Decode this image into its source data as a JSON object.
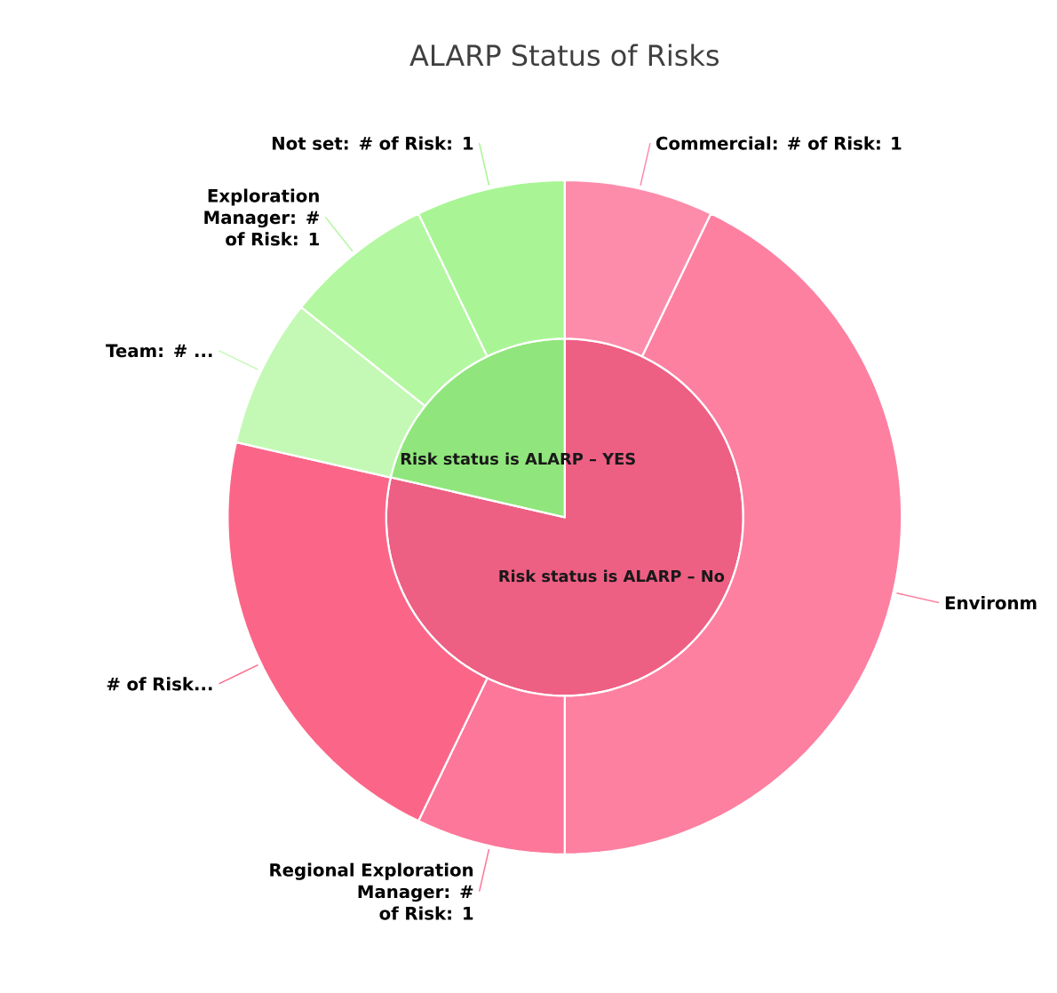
{
  "chart_data": [
    {
      "type": "pie",
      "title": "ALARP Status of Risks",
      "categories": [
        "Risk status is ALARP – No",
        "Risk status is ALARP – YES"
      ],
      "values": [
        78.6,
        21.4
      ],
      "colors": [
        "#ee5f84",
        "#90e67c"
      ]
    },
    {
      "type": "donut",
      "categories": [
        "Commercial: # of Risk: 1",
        "Environm",
        "Regional Exploration Manager: # of Risk: 1",
        "# of Risk...",
        "Team: # ...",
        "Exploration Manager: # of Risk: 1",
        "Not set: # of Risk: 1"
      ],
      "values": [
        1,
        6,
        1,
        3,
        1,
        1,
        1
      ],
      "colors": [
        "#fd8cab",
        "#fd80a1",
        "#fd779a",
        "#fb6688",
        "#c3f9b4",
        "#b3f7a0",
        "#a9f596"
      ]
    }
  ]
}
